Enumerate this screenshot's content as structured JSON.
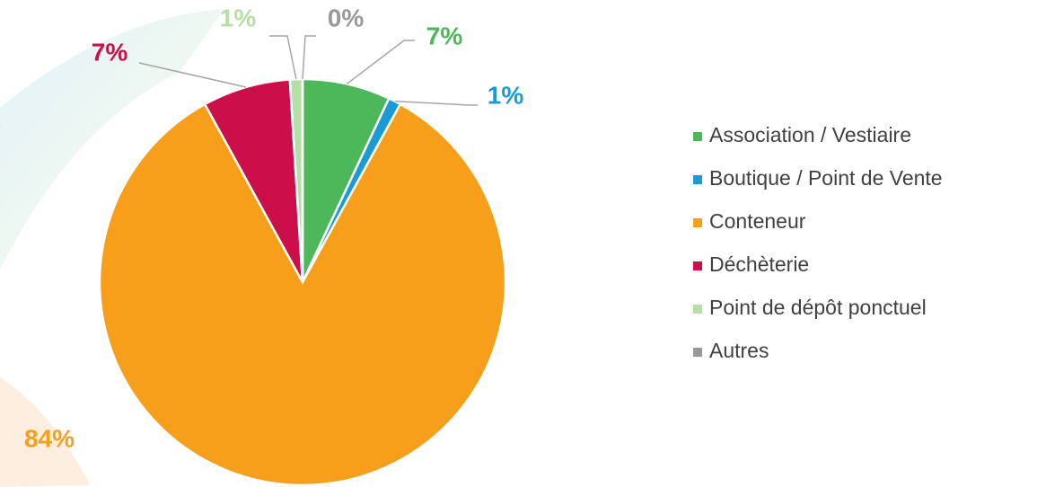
{
  "chart_data": {
    "type": "pie",
    "categories": [
      "Association / Vestiaire",
      "Boutique / Point de Vente",
      "Conteneur",
      "Déchèterie",
      "Point de dépôt ponctuel",
      "Autres"
    ],
    "values": [
      7,
      1,
      84,
      7,
      1,
      0
    ],
    "value_labels": [
      "7%",
      "1%",
      "84%",
      "7%",
      "1%",
      "0%"
    ],
    "colors": [
      "#4cb85a",
      "#1a9ad6",
      "#f79f1a",
      "#cc0e4a",
      "#b5e0a5",
      "#999999"
    ],
    "legend": "right"
  }
}
